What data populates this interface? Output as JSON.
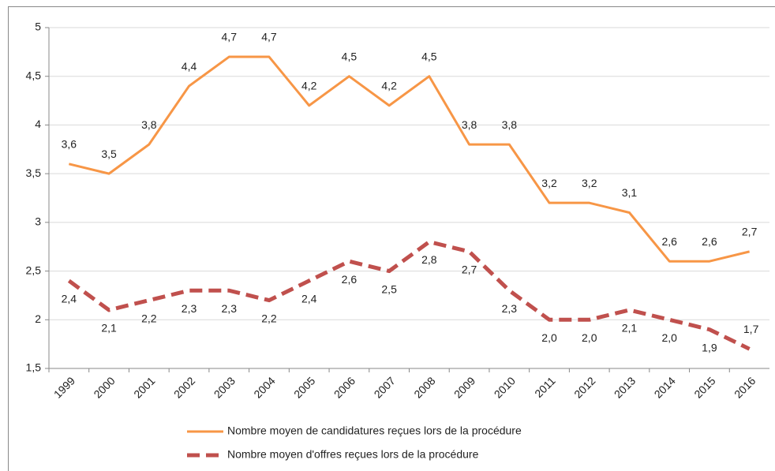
{
  "chart_data": {
    "type": "line",
    "categories": [
      "1999",
      "2000",
      "2001",
      "2002",
      "2003",
      "2004",
      "2005",
      "2006",
      "2007",
      "2008",
      "2009",
      "2010",
      "2011",
      "2012",
      "2013",
      "2014",
      "2015",
      "2016"
    ],
    "series": [
      {
        "name": "Nombre moyen de candidatures reçues lors de la procédure",
        "color": "#f79646",
        "dash": false,
        "values": [
          3.6,
          3.5,
          3.8,
          4.4,
          4.7,
          4.7,
          4.2,
          4.5,
          4.2,
          4.5,
          3.8,
          3.8,
          3.2,
          3.2,
          3.1,
          2.6,
          2.6,
          2.7
        ],
        "value_labels": [
          "3,6",
          "3,5",
          "3,8",
          "4,4",
          "4,7",
          "4,7",
          "4,2",
          "4,5",
          "4,2",
          "4,5",
          "3,8",
          "3,8",
          "3,2",
          "3,2",
          "3,1",
          "2,6",
          "2,6",
          "2,7"
        ]
      },
      {
        "name": "Nombre moyen d'offres reçues lors de la procédure",
        "color": "#c0504d",
        "dash": true,
        "values": [
          2.4,
          2.1,
          2.2,
          2.3,
          2.3,
          2.2,
          2.4,
          2.6,
          2.5,
          2.8,
          2.7,
          2.3,
          2.0,
          2.0,
          2.1,
          2.0,
          1.9,
          1.7
        ],
        "value_labels": [
          "2,4",
          "2,1",
          "2,2",
          "2,3",
          "2,3",
          "2,2",
          "2,4",
          "2,6",
          "2,5",
          "2,8",
          "2,7",
          "2,3",
          "2,0",
          "2,0",
          "2,1",
          "2,0",
          "1,9",
          "1,7"
        ]
      }
    ],
    "ylim": [
      1.5,
      5
    ],
    "yticks": [
      {
        "value": 1.5,
        "label": "1,5"
      },
      2,
      {
        "value": 2.5,
        "label": "2,5"
      },
      3,
      {
        "value": 3.5,
        "label": "3,5"
      },
      4,
      {
        "value": 4.5,
        "label": "4,5"
      },
      5
    ],
    "grid": true,
    "legend": "bottom"
  }
}
